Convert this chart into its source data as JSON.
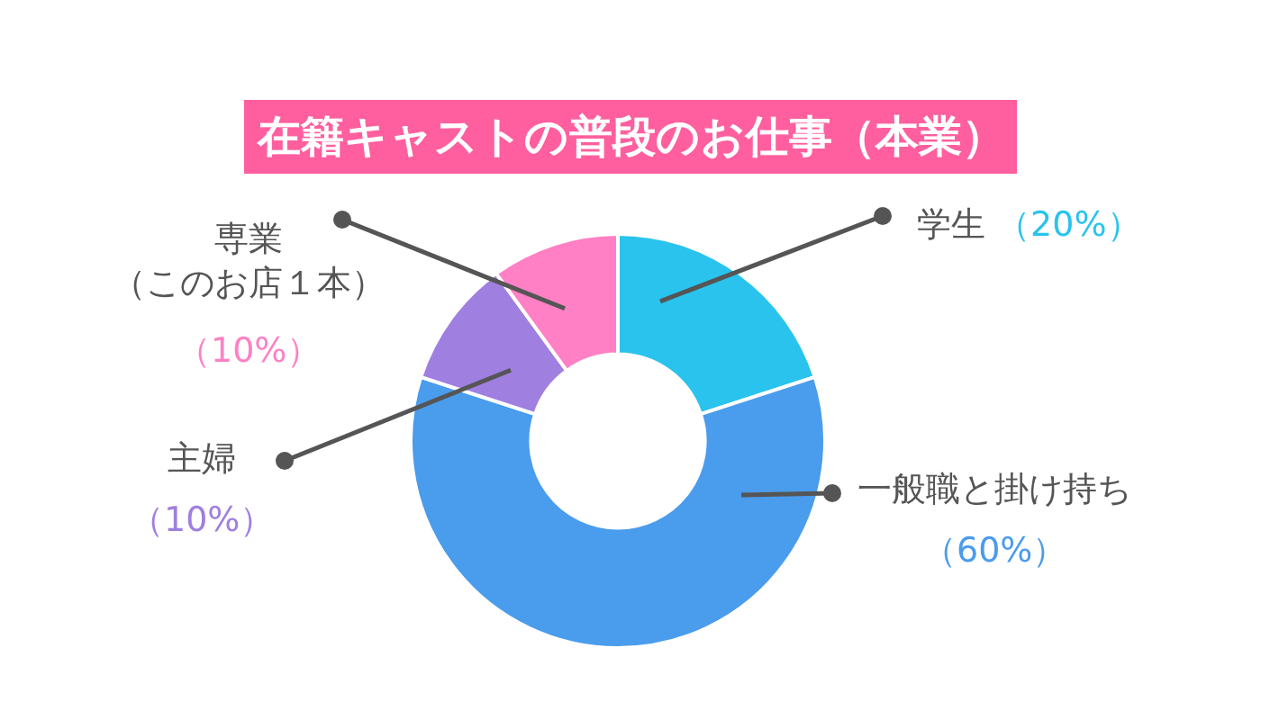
{
  "chart_data": {
    "type": "donut",
    "title": "在籍キャストの普段のお仕事（本業）",
    "categories": [
      "学生",
      "一般職と掛け持ち",
      "主婦",
      "専業（このお店１本）"
    ],
    "values": [
      20,
      60,
      10,
      10
    ],
    "colors": [
      "#29c3ee",
      "#4a9cec",
      "#9f7fe0",
      "#ff80c4"
    ],
    "value_labels": [
      "（20%）",
      "（60%）",
      "（10%）",
      "（10%）"
    ],
    "legend": false
  }
}
